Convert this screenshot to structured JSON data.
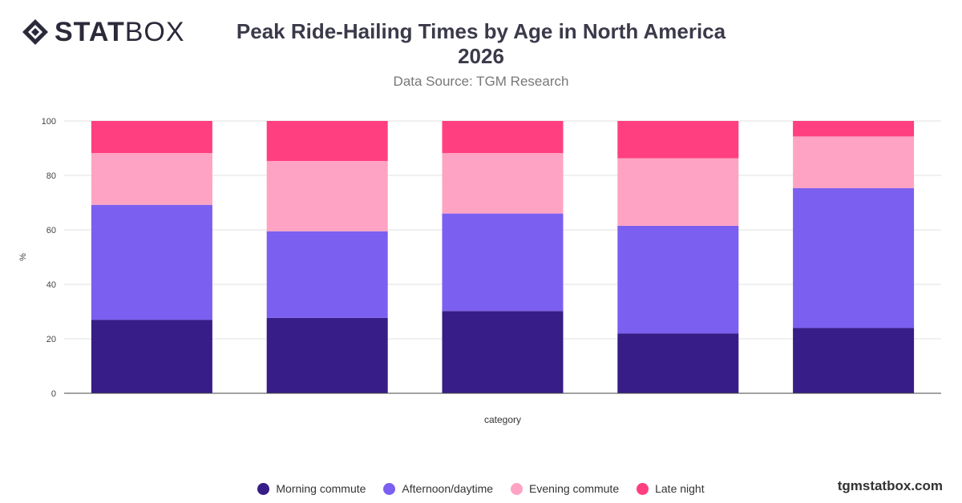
{
  "brand": {
    "logo_strong": "STAT",
    "logo_light": "BOX",
    "watermark": "tgmstatbox.com"
  },
  "chart_data": {
    "type": "bar",
    "stacked": true,
    "title_line1": "Peak Ride-Hailing Times by Age in North America",
    "title_line2": "2026",
    "subtitle": "Data Source: TGM Research",
    "xlabel": "category",
    "ylabel": "%",
    "ylim": [
      0,
      100
    ],
    "yticks": [
      0,
      20,
      40,
      60,
      80,
      100
    ],
    "grid": true,
    "legend_position": "bottom",
    "categories": [
      "",
      "",
      "",
      "",
      ""
    ],
    "series": [
      {
        "name": "Morning commute",
        "color": "#371d87",
        "values": [
          27,
          27.7,
          30.2,
          22,
          24
        ]
      },
      {
        "name": "Afternoon/daytime",
        "color": "#7b5ff0",
        "values": [
          42.2,
          31.8,
          35.8,
          39.5,
          51.3
        ]
      },
      {
        "name": "Evening commute",
        "color": "#ffa3c4",
        "values": [
          19,
          25.8,
          22.2,
          24.8,
          19
        ]
      },
      {
        "name": "Late night",
        "color": "#ff3f7f",
        "values": [
          11.8,
          14.7,
          11.8,
          13.7,
          5.7
        ]
      }
    ]
  }
}
